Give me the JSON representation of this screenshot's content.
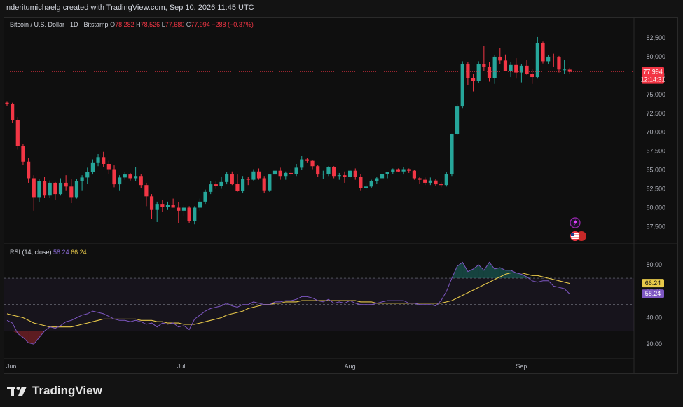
{
  "header": {
    "attribution": "nderitumichaelg created with TradingView.com, Sep 10, 2026 11:45 UTC"
  },
  "legend": {
    "symbol": "Bitcoin / U.S. Dollar · 1D · Bitstamp",
    "o_label": "O",
    "o_value": "78,282",
    "h_label": "H",
    "h_value": "78,526",
    "l_label": "L",
    "l_value": "77,680",
    "c_label": "C",
    "c_value": "77,994",
    "change": "−288 (−0.37%)"
  },
  "price_tag": {
    "price": "77,994",
    "countdown": "12:14:31"
  },
  "rsi": {
    "label": "RSI (14, close)",
    "value": "58.24",
    "ma_value": "66.24"
  },
  "footer": {
    "brand": "TradingView"
  },
  "colors": {
    "up": "#26a69a",
    "down": "#f23645",
    "rsi": "#7e57c2",
    "rsi_ma": "#e8c94a"
  },
  "chart_data": [
    {
      "type": "candlestick",
      "price_axis_ticks": [
        82500,
        80000,
        77500,
        75000,
        72500,
        70000,
        67500,
        65000,
        62500,
        60000,
        57500
      ],
      "price_axis_labels": [
        "82,500",
        "80,000",
        "77,500",
        "75,000",
        "72,500",
        "70,000",
        "67,500",
        "65,000",
        "62,500",
        "60,000",
        "57,500"
      ],
      "x_axis_labels": [
        "Jun",
        "Jul",
        "Aug",
        "Sep"
      ],
      "ylim": [
        55500,
        83800
      ],
      "last_price": 77994,
      "candles": [
        [
          73900,
          74100,
          73500,
          73700
        ],
        [
          73700,
          73900,
          71200,
          71600
        ],
        [
          71600,
          72000,
          67700,
          68200
        ],
        [
          68200,
          68400,
          65700,
          66100
        ],
        [
          66100,
          66600,
          63300,
          63900
        ],
        [
          63900,
          64300,
          59600,
          61400
        ],
        [
          61400,
          63800,
          60700,
          63500
        ],
        [
          63500,
          64100,
          61300,
          61600
        ],
        [
          61600,
          63600,
          61300,
          63300
        ],
        [
          63300,
          63400,
          61000,
          61800
        ],
        [
          61800,
          63900,
          61600,
          63300
        ],
        [
          63300,
          64300,
          62300,
          62800
        ],
        [
          62800,
          63800,
          60600,
          61400
        ],
        [
          61400,
          63800,
          61200,
          63500
        ],
        [
          63500,
          64300,
          62300,
          64000
        ],
        [
          64000,
          65300,
          63200,
          64700
        ],
        [
          64700,
          66400,
          64400,
          66000
        ],
        [
          66000,
          67100,
          65500,
          66700
        ],
        [
          66700,
          67400,
          65400,
          65800
        ],
        [
          65800,
          66200,
          64500,
          65100
        ],
        [
          65100,
          65600,
          62700,
          63100
        ],
        [
          63100,
          64300,
          62300,
          64000
        ],
        [
          64000,
          64700,
          63700,
          64400
        ],
        [
          64400,
          64600,
          63600,
          63900
        ],
        [
          63900,
          65400,
          63500,
          64200
        ],
        [
          64200,
          64500,
          62600,
          63000
        ],
        [
          63000,
          63300,
          60200,
          61500
        ],
        [
          61500,
          61800,
          58500,
          59700
        ],
        [
          59700,
          60800,
          58100,
          60500
        ],
        [
          60500,
          61000,
          59400,
          60100
        ],
        [
          60100,
          60800,
          59700,
          60400
        ],
        [
          60400,
          61200,
          60000,
          60000
        ],
        [
          60000,
          60700,
          58000,
          59600
        ],
        [
          59600,
          60400,
          58900,
          60000
        ],
        [
          60000,
          60200,
          58000,
          58200
        ],
        [
          58200,
          60200,
          57800,
          60000
        ],
        [
          60000,
          61200,
          59600,
          60800
        ],
        [
          60800,
          62400,
          60500,
          62100
        ],
        [
          62100,
          63500,
          61800,
          63100
        ],
        [
          63100,
          63500,
          62500,
          62900
        ],
        [
          62900,
          64100,
          62500,
          63400
        ],
        [
          63400,
          64700,
          63100,
          64500
        ],
        [
          64500,
          64800,
          63000,
          63200
        ],
        [
          63200,
          64400,
          62100,
          62200
        ],
        [
          62200,
          64200,
          61900,
          63800
        ],
        [
          63800,
          64100,
          63000,
          63700
        ],
        [
          63700,
          65100,
          63600,
          64800
        ],
        [
          64800,
          65200,
          63700,
          63900
        ],
        [
          63900,
          64200,
          61900,
          62300
        ],
        [
          62300,
          64500,
          62100,
          64400
        ],
        [
          64400,
          65600,
          64100,
          64900
        ],
        [
          64900,
          65300,
          63700,
          64200
        ],
        [
          64200,
          64800,
          63700,
          64600
        ],
        [
          64600,
          65100,
          64200,
          64500
        ],
        [
          64500,
          65800,
          64200,
          65300
        ],
        [
          65300,
          66900,
          65000,
          66400
        ],
        [
          66400,
          66600,
          66000,
          66200
        ],
        [
          66200,
          66300,
          65100,
          65500
        ],
        [
          65500,
          65700,
          64100,
          64400
        ],
        [
          64400,
          64900,
          63800,
          64500
        ],
        [
          64500,
          65500,
          64200,
          65400
        ],
        [
          65400,
          65500,
          63900,
          64200
        ],
        [
          64200,
          64600,
          63700,
          64300
        ],
        [
          64300,
          64800,
          63300,
          64100
        ],
        [
          64100,
          65000,
          63900,
          64900
        ],
        [
          64900,
          65200,
          63700,
          64100
        ],
        [
          64100,
          64500,
          62300,
          62600
        ],
        [
          62600,
          63300,
          62400,
          62800
        ],
        [
          62800,
          63700,
          62600,
          63500
        ],
        [
          63500,
          64100,
          63200,
          63900
        ],
        [
          63900,
          64800,
          63400,
          64500
        ],
        [
          64500,
          64700,
          63900,
          64700
        ],
        [
          64700,
          65200,
          64500,
          65100
        ],
        [
          65100,
          65200,
          64700,
          64800
        ],
        [
          64800,
          65400,
          64400,
          65100
        ],
        [
          65100,
          65200,
          64600,
          64900
        ],
        [
          64900,
          65000,
          63700,
          63900
        ],
        [
          63900,
          64100,
          63200,
          63700
        ],
        [
          63700,
          64000,
          63000,
          63300
        ],
        [
          63300,
          64000,
          63000,
          63600
        ],
        [
          63600,
          63800,
          62900,
          63100
        ],
        [
          63100,
          63400,
          62700,
          63000
        ],
        [
          63000,
          64700,
          62800,
          64500
        ],
        [
          64500,
          69800,
          64200,
          69700
        ],
        [
          69700,
          73700,
          69600,
          73400
        ],
        [
          73400,
          79400,
          73200,
          79000
        ],
        [
          79000,
          79300,
          76200,
          77200
        ],
        [
          77200,
          77700,
          75400,
          76800
        ],
        [
          76800,
          79400,
          76500,
          79000
        ],
        [
          79000,
          81400,
          78100,
          78700
        ],
        [
          78700,
          79300,
          76700,
          77200
        ],
        [
          77200,
          80200,
          76400,
          80000
        ],
        [
          80000,
          81200,
          79000,
          79500
        ],
        [
          79500,
          80300,
          78100,
          78100
        ],
        [
          78100,
          79300,
          77300,
          78900
        ],
        [
          78900,
          79800,
          77100,
          77900
        ],
        [
          77900,
          79000,
          76600,
          78800
        ],
        [
          78800,
          79600,
          77600,
          77700
        ],
        [
          77700,
          78300,
          76400,
          77300
        ],
        [
          77300,
          82600,
          77100,
          81800
        ],
        [
          81800,
          82000,
          79100,
          79400
        ],
        [
          79400,
          80200,
          79000,
          80000
        ],
        [
          80000,
          80400,
          78700,
          79900
        ],
        [
          79900,
          80100,
          77900,
          78300
        ],
        [
          78300,
          79600,
          77700,
          78300
        ],
        [
          78282,
          78526,
          77680,
          77994
        ]
      ]
    },
    {
      "type": "line",
      "name": "RSI (14, close)",
      "y_ticks": [
        80,
        60,
        40,
        20
      ],
      "y_tick_labels": [
        "80.00",
        "60.00",
        "40.00",
        "20.00"
      ],
      "bands": [
        70,
        50,
        30
      ],
      "ylim": [
        10,
        95
      ],
      "series": [
        {
          "name": "RSI",
          "values": [
            38,
            36,
            28,
            25,
            21,
            20,
            25,
            30,
            33,
            32,
            34,
            37,
            38,
            40,
            42,
            43,
            45,
            44,
            43,
            41,
            39,
            38,
            38,
            37,
            38,
            37,
            35,
            36,
            33,
            36,
            35,
            36,
            33,
            34,
            31,
            39,
            42,
            45,
            47,
            48,
            49,
            51,
            49,
            48,
            50,
            50,
            52,
            51,
            50,
            50,
            52,
            52,
            53,
            53,
            54,
            56,
            56,
            55,
            53,
            52,
            54,
            51,
            52,
            51,
            53,
            51,
            50,
            50,
            50,
            51,
            52,
            53,
            53,
            53,
            53,
            51,
            51,
            50,
            50,
            50,
            49,
            53,
            60,
            70,
            79,
            82,
            75,
            77,
            80,
            76,
            82,
            77,
            78,
            76,
            76,
            74,
            73,
            71,
            68,
            67,
            68,
            68,
            64,
            63,
            62,
            58
          ]
        },
        {
          "name": "RSI-based MA",
          "values": [
            43,
            42,
            41,
            40,
            38,
            36,
            35,
            34,
            33,
            33,
            33,
            33,
            33,
            34,
            35,
            36,
            37,
            38,
            39,
            39,
            39,
            39,
            39,
            39,
            39,
            38,
            38,
            38,
            37,
            37,
            36,
            36,
            36,
            35,
            35,
            35,
            36,
            37,
            38,
            39,
            40,
            42,
            43,
            44,
            45,
            47,
            48,
            49,
            50,
            50,
            51,
            51,
            52,
            52,
            52,
            53,
            53,
            53,
            53,
            53,
            53,
            53,
            53,
            53,
            53,
            53,
            52,
            52,
            52,
            51,
            51,
            51,
            51,
            51,
            51,
            51,
            51,
            51,
            51,
            51,
            51,
            51,
            52,
            53,
            55,
            57,
            59,
            61,
            63,
            65,
            67,
            69,
            71,
            73,
            74,
            74,
            74,
            73,
            72,
            72,
            71,
            70,
            69,
            68,
            67,
            66
          ]
        }
      ]
    }
  ]
}
